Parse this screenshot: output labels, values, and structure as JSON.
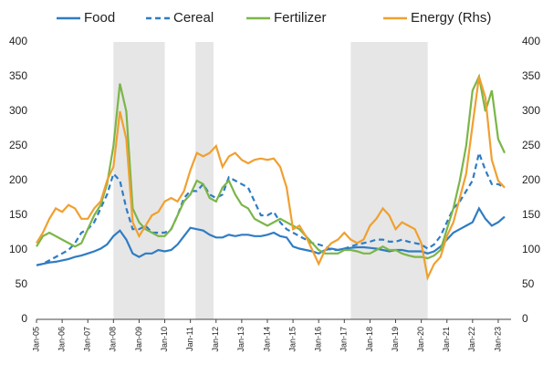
{
  "chart_data": {
    "type": "line",
    "x": [
      2005,
      2005.25,
      2005.5,
      2005.75,
      2006,
      2006.25,
      2006.5,
      2006.75,
      2007,
      2007.25,
      2007.5,
      2007.75,
      2008,
      2008.25,
      2008.5,
      2008.75,
      2009,
      2009.25,
      2009.5,
      2009.75,
      2010,
      2010.25,
      2010.5,
      2010.75,
      2011,
      2011.25,
      2011.5,
      2011.75,
      2012,
      2012.25,
      2012.5,
      2012.75,
      2013,
      2013.25,
      2013.5,
      2013.75,
      2014,
      2014.25,
      2014.5,
      2014.75,
      2015,
      2015.25,
      2015.5,
      2015.75,
      2016,
      2016.25,
      2016.5,
      2016.75,
      2017,
      2017.25,
      2017.5,
      2017.75,
      2018,
      2018.25,
      2018.5,
      2018.75,
      2019,
      2019.25,
      2019.5,
      2019.75,
      2020,
      2020.25,
      2020.5,
      2020.75,
      2021,
      2021.25,
      2021.5,
      2021.75,
      2022,
      2022.25,
      2022.5,
      2022.75,
      2023,
      2023.25
    ],
    "series": [
      {
        "name": "Food",
        "color": "#2f7cc4",
        "dashed": false,
        "values": [
          78,
          80,
          82,
          83,
          85,
          87,
          90,
          92,
          95,
          98,
          102,
          108,
          120,
          128,
          115,
          95,
          90,
          95,
          95,
          100,
          98,
          100,
          108,
          120,
          132,
          130,
          128,
          122,
          118,
          118,
          122,
          120,
          122,
          122,
          120,
          120,
          122,
          125,
          120,
          118,
          105,
          102,
          100,
          98,
          95,
          100,
          102,
          100,
          102,
          103,
          104,
          104,
          103,
          102,
          100,
          98,
          100,
          100,
          98,
          98,
          98,
          95,
          98,
          105,
          115,
          125,
          130,
          135,
          140,
          160,
          145,
          135,
          140,
          148
        ]
      },
      {
        "name": "Cereal",
        "color": "#2f7cc4",
        "dashed": true,
        "values": [
          78,
          80,
          85,
          90,
          95,
          100,
          110,
          125,
          130,
          140,
          160,
          180,
          210,
          200,
          160,
          130,
          130,
          135,
          125,
          125,
          125,
          130,
          150,
          175,
          185,
          185,
          195,
          180,
          175,
          180,
          205,
          200,
          195,
          190,
          170,
          150,
          150,
          155,
          140,
          130,
          125,
          120,
          115,
          110,
          108,
          105,
          100,
          100,
          102,
          105,
          108,
          110,
          112,
          115,
          115,
          112,
          112,
          115,
          112,
          110,
          108,
          102,
          108,
          120,
          140,
          160,
          170,
          185,
          200,
          240,
          215,
          195,
          195,
          190
        ]
      },
      {
        "name": "Fertilizer",
        "color": "#7ab648",
        "dashed": false,
        "values": [
          105,
          120,
          125,
          120,
          115,
          110,
          105,
          110,
          130,
          150,
          165,
          195,
          250,
          340,
          300,
          160,
          140,
          130,
          125,
          120,
          120,
          130,
          150,
          170,
          180,
          200,
          195,
          175,
          170,
          190,
          200,
          180,
          165,
          160,
          145,
          140,
          135,
          140,
          145,
          140,
          135,
          130,
          120,
          110,
          100,
          95,
          95,
          95,
          100,
          100,
          98,
          95,
          95,
          100,
          105,
          100,
          100,
          95,
          92,
          90,
          90,
          88,
          92,
          100,
          130,
          160,
          200,
          250,
          330,
          350,
          300,
          330,
          260,
          240
        ]
      },
      {
        "name": "Energy (Rhs)",
        "color": "#f0a030",
        "dashed": false,
        "axis": "y2",
        "values": [
          110,
          125,
          145,
          160,
          155,
          165,
          160,
          145,
          145,
          160,
          170,
          200,
          220,
          300,
          260,
          140,
          120,
          135,
          150,
          155,
          170,
          175,
          170,
          185,
          215,
          240,
          235,
          240,
          250,
          220,
          235,
          240,
          230,
          225,
          230,
          232,
          230,
          232,
          220,
          190,
          130,
          135,
          120,
          100,
          80,
          100,
          110,
          115,
          125,
          115,
          110,
          115,
          135,
          145,
          160,
          150,
          130,
          140,
          135,
          130,
          110,
          60,
          80,
          90,
          120,
          140,
          175,
          210,
          280,
          350,
          320,
          230,
          200,
          190
        ]
      }
    ],
    "xlim": [
      2005,
      2023.5
    ],
    "xticks": [
      {
        "value": 2005,
        "label": "Jan-05"
      },
      {
        "value": 2006,
        "label": "Jan-06"
      },
      {
        "value": 2007,
        "label": "Jan-07"
      },
      {
        "value": 2008,
        "label": "Jan-08"
      },
      {
        "value": 2009,
        "label": "Jan-09"
      },
      {
        "value": 2010,
        "label": "Jan-10"
      },
      {
        "value": 2011,
        "label": "Jan-11"
      },
      {
        "value": 2012,
        "label": "Jan-12"
      },
      {
        "value": 2013,
        "label": "Jan-13"
      },
      {
        "value": 2014,
        "label": "Jan-14"
      },
      {
        "value": 2015,
        "label": "Jan-15"
      },
      {
        "value": 2016,
        "label": "Jan-16"
      },
      {
        "value": 2017,
        "label": "Jan-17"
      },
      {
        "value": 2018,
        "label": "Jan-18"
      },
      {
        "value": 2019,
        "label": "Jan-19"
      },
      {
        "value": 2020,
        "label": "Jan-20"
      },
      {
        "value": 2021,
        "label": "Jan-21"
      },
      {
        "value": 2022,
        "label": "Jan-22"
      },
      {
        "value": 2023,
        "label": "Jan-23"
      }
    ],
    "ylim": [
      0,
      400
    ],
    "yticks": [
      0,
      50,
      100,
      150,
      200,
      250,
      300,
      350,
      400
    ],
    "y2lim": [
      0,
      400
    ],
    "y2ticks": [
      0,
      50,
      100,
      150,
      200,
      250,
      300,
      350,
      400
    ],
    "shaded": [
      [
        2008,
        2010
      ],
      [
        2011.2,
        2011.9
      ],
      [
        2017.25,
        2020.25
      ]
    ]
  }
}
